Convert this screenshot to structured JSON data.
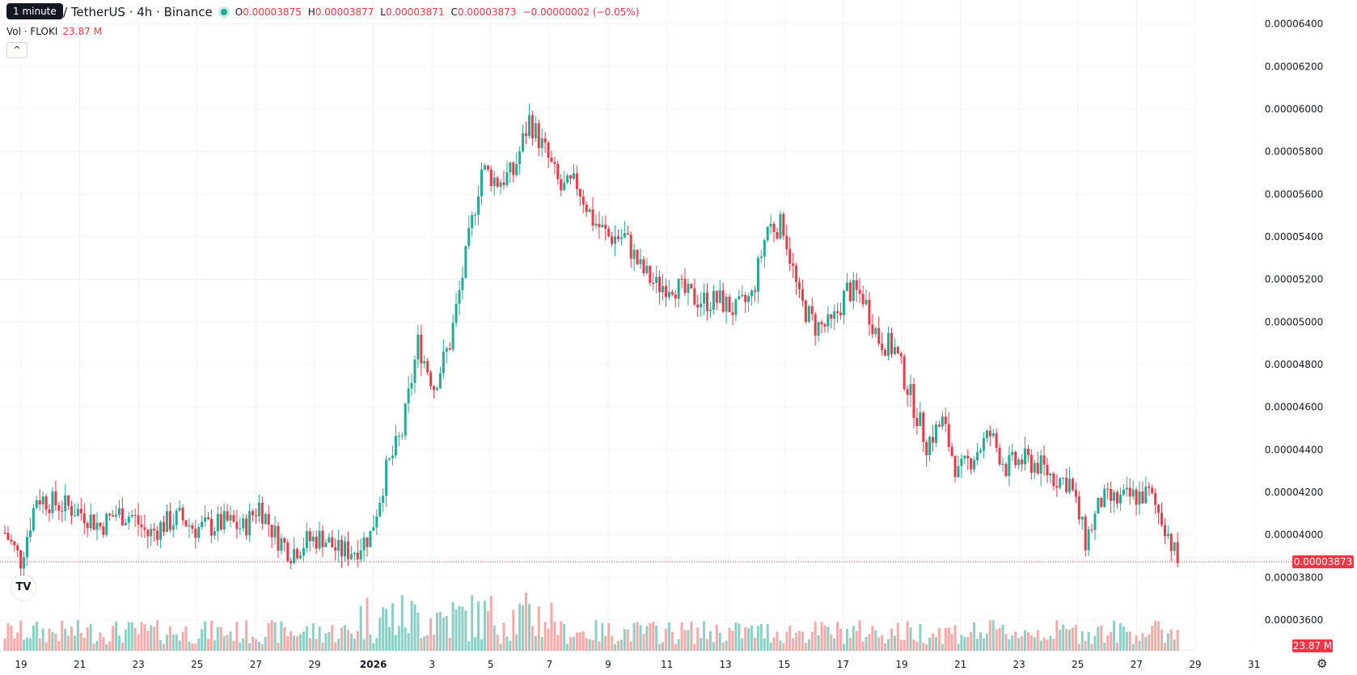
{
  "header": {
    "tooltip": "1 minute",
    "symbol": "/ TetherUS · 4h · Binance",
    "open_label": "O",
    "open": "0.00003875",
    "high_label": "H",
    "high": "0.00003877",
    "low_label": "L",
    "low": "0.00003871",
    "close_label": "C",
    "close": "0.00003873",
    "change": "−0.00000002 (−0.05%)"
  },
  "volume_legend": {
    "label": "Vol · FLOKI",
    "value": "23.87 M"
  },
  "collapse_glyph": "^",
  "logo_text": "TV",
  "settings_icon": "⚙",
  "colors": {
    "up": "#22ab94",
    "down": "#f23645",
    "vol_up": "#8dcfc4",
    "vol_down": "#f7a9a7",
    "grid": "#f0f3fa"
  },
  "chart_data": {
    "type": "candlestick",
    "price_axis_ticks": [
      "0.00006400",
      "0.00006200",
      "0.00006000",
      "0.00005800",
      "0.00005600",
      "0.00005400",
      "0.00005200",
      "0.00005000",
      "0.00004800",
      "0.00004600",
      "0.00004400",
      "0.00004200",
      "0.00004000",
      "0.00003800",
      "0.00003600"
    ],
    "price_range": [
      3.52e-05,
      6.52e-05
    ],
    "date_axis_ticks": [
      "19",
      "21",
      "23",
      "25",
      "27",
      "29",
      "2026",
      "3",
      "5",
      "7",
      "9",
      "11",
      "13",
      "15",
      "17",
      "19",
      "21",
      "23",
      "25",
      "27",
      "29",
      "31"
    ],
    "last_price_label": "0.00003873",
    "last_volume_label": "23.87 M",
    "price_anchors": [
      [
        0,
        4.01e-05
      ],
      [
        5,
        3.88e-05
      ],
      [
        10,
        4.18e-05
      ],
      [
        15,
        4.15e-05
      ],
      [
        20,
        4.13e-05
      ],
      [
        25,
        4.1e-05
      ],
      [
        30,
        4.04e-05
      ],
      [
        35,
        4.1e-05
      ],
      [
        40,
        4.09e-05
      ],
      [
        45,
        4e-05
      ],
      [
        50,
        4.05e-05
      ],
      [
        55,
        4.08e-05
      ],
      [
        60,
        4.03e-05
      ],
      [
        65,
        4.04e-05
      ],
      [
        70,
        4.06e-05
      ],
      [
        75,
        4.03e-05
      ],
      [
        80,
        4.14e-05
      ],
      [
        85,
        4e-05
      ],
      [
        90,
        3.92e-05
      ],
      [
        95,
        3.97e-05
      ],
      [
        100,
        3.99e-05
      ],
      [
        105,
        3.92e-05
      ],
      [
        110,
        3.93e-05
      ],
      [
        115,
        4e-05
      ],
      [
        120,
        4.3e-05
      ],
      [
        125,
        4.48e-05
      ],
      [
        130,
        4.9e-05
      ],
      [
        135,
        4.7e-05
      ],
      [
        140,
        4.9e-05
      ],
      [
        145,
        5.3e-05
      ],
      [
        150,
        5.72e-05
      ],
      [
        155,
        5.66e-05
      ],
      [
        160,
        5.7e-05
      ],
      [
        165,
        5.95e-05
      ],
      [
        170,
        5.8e-05
      ],
      [
        175,
        5.62e-05
      ],
      [
        180,
        5.65e-05
      ],
      [
        185,
        5.48e-05
      ],
      [
        190,
        5.4e-05
      ],
      [
        195,
        5.4e-05
      ],
      [
        200,
        5.25e-05
      ],
      [
        205,
        5.17e-05
      ],
      [
        210,
        5.18e-05
      ],
      [
        215,
        5.12e-05
      ],
      [
        220,
        5.1e-05
      ],
      [
        225,
        5.1e-05
      ],
      [
        230,
        5.05e-05
      ],
      [
        235,
        5.12e-05
      ],
      [
        240,
        5.45e-05
      ],
      [
        245,
        5.45e-05
      ],
      [
        250,
        5.1e-05
      ],
      [
        255,
        4.98e-05
      ],
      [
        260,
        4.98e-05
      ],
      [
        265,
        5.15e-05
      ],
      [
        270,
        5.12e-05
      ],
      [
        275,
        4.92e-05
      ],
      [
        280,
        4.87e-05
      ],
      [
        285,
        4.65e-05
      ],
      [
        290,
        4.43e-05
      ],
      [
        295,
        4.53e-05
      ],
      [
        300,
        4.28e-05
      ],
      [
        305,
        4.38e-05
      ],
      [
        310,
        4.47e-05
      ],
      [
        315,
        4.32e-05
      ],
      [
        320,
        4.35e-05
      ],
      [
        325,
        4.33e-05
      ],
      [
        330,
        4.27e-05
      ],
      [
        335,
        4.25e-05
      ],
      [
        340,
        3.97e-05
      ],
      [
        345,
        4.16e-05
      ],
      [
        350,
        4.16e-05
      ],
      [
        355,
        4.18e-05
      ],
      [
        360,
        4.19e-05
      ],
      [
        365,
        4.05e-05
      ],
      [
        369,
        3.87e-05
      ]
    ],
    "volume_scale_max": 100
  }
}
